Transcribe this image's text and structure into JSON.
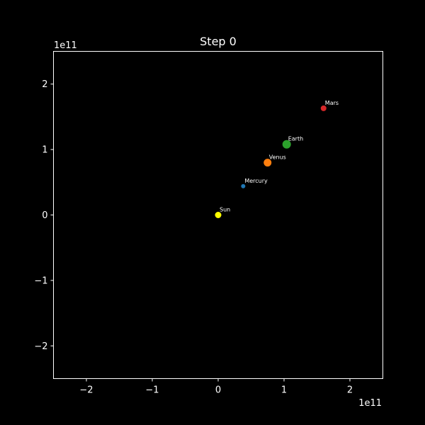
{
  "chart_data": {
    "type": "scatter",
    "title": "Step 0",
    "xlabel": "",
    "ylabel": "",
    "x_offset_label": "1e11",
    "y_offset_label": "1e11",
    "xlim": [
      -250000000000.0,
      250000000000.0
    ],
    "ylim": [
      -250000000000.0,
      250000000000.0
    ],
    "x_ticks": [
      -200000000000.0,
      -100000000000.0,
      0,
      100000000000.0,
      200000000000.0
    ],
    "x_tick_labels": [
      "−2",
      "−1",
      "0",
      "1",
      "2"
    ],
    "y_ticks": [
      -200000000000.0,
      -100000000000.0,
      0,
      100000000000.0,
      200000000000.0
    ],
    "y_tick_labels": [
      "−2",
      "−1",
      "0",
      "1",
      "2"
    ],
    "grid": false,
    "background": "#000000",
    "series": [
      {
        "name": "Sun",
        "x": 0,
        "y": 0,
        "color": "#ffff00",
        "size": 4.5
      },
      {
        "name": "Mercury",
        "x": 38000000000.0,
        "y": 44000000000.0,
        "color": "#1f77b4",
        "size": 3
      },
      {
        "name": "Venus",
        "x": 75000000000.0,
        "y": 80000000000.0,
        "color": "#ff7f0e",
        "size": 5.5
      },
      {
        "name": "Earth",
        "x": 104000000000.0,
        "y": 108000000000.0,
        "color": "#2ca02c",
        "size": 6
      },
      {
        "name": "Mars",
        "x": 160000000000.0,
        "y": 163000000000.0,
        "color": "#d62728",
        "size": 4
      }
    ]
  }
}
